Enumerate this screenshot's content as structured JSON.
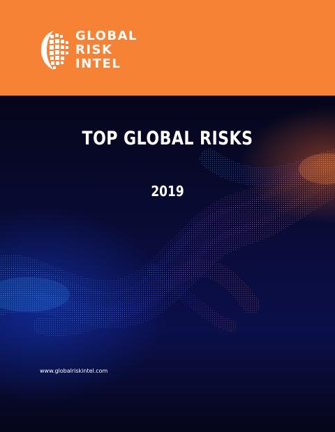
{
  "brand": {
    "lines": [
      "GLOBAL",
      "RISK",
      "INTEL"
    ],
    "logo_icon": "globe-grid-icon"
  },
  "cover": {
    "title": "TOP GLOBAL RISKS",
    "year": "2019",
    "url": "www.globalriskintel.com"
  },
  "colors": {
    "header": "#F58235",
    "background": "#0a0c3a",
    "wave_orange": "#ff7a2e",
    "wave_blue": "#2d7bff"
  }
}
